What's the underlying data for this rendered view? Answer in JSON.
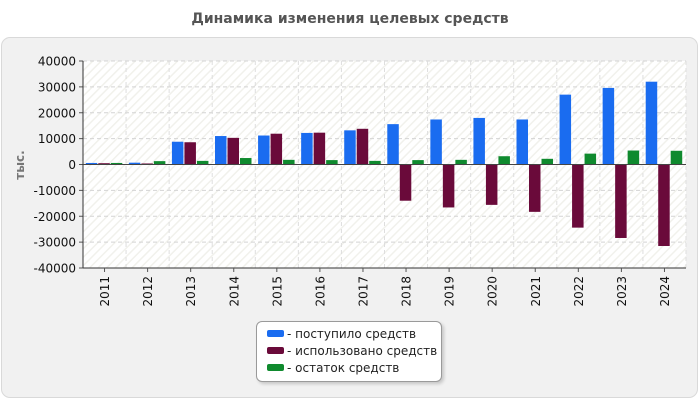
{
  "chart_data": {
    "type": "bar",
    "title": "Динамика изменения целевых средств",
    "ylabel": "тыс.",
    "xlabel": "",
    "categories": [
      "2011",
      "2012",
      "2013",
      "2014",
      "2015",
      "2016",
      "2017",
      "2018",
      "2019",
      "2020",
      "2021",
      "2022",
      "2023",
      "2024"
    ],
    "ylim": [
      -40000,
      40000
    ],
    "yticks": [
      40000,
      30000,
      20000,
      10000,
      0,
      -10000,
      -20000,
      -30000,
      -40000
    ],
    "grid": true,
    "legend_position": "bottom",
    "series": [
      {
        "name": "- поступило средств",
        "color": "#1a6cf0",
        "values": [
          600,
          700,
          8800,
          11000,
          11200,
          12200,
          13200,
          15600,
          17400,
          18000,
          17400,
          27000,
          29600,
          32000
        ]
      },
      {
        "name": "- использовано средств",
        "color": "#6a0a3a",
        "values": [
          500,
          400,
          8600,
          10300,
          11900,
          12300,
          13800,
          -14000,
          -16600,
          -15600,
          -18300,
          -24400,
          -28400,
          -31500
        ]
      },
      {
        "name": "- остаток средств",
        "color": "#0f8a2e",
        "values": [
          600,
          1300,
          1400,
          2500,
          1800,
          1700,
          1400,
          1700,
          1800,
          3200,
          2200,
          4200,
          5400,
          5300
        ]
      }
    ]
  }
}
